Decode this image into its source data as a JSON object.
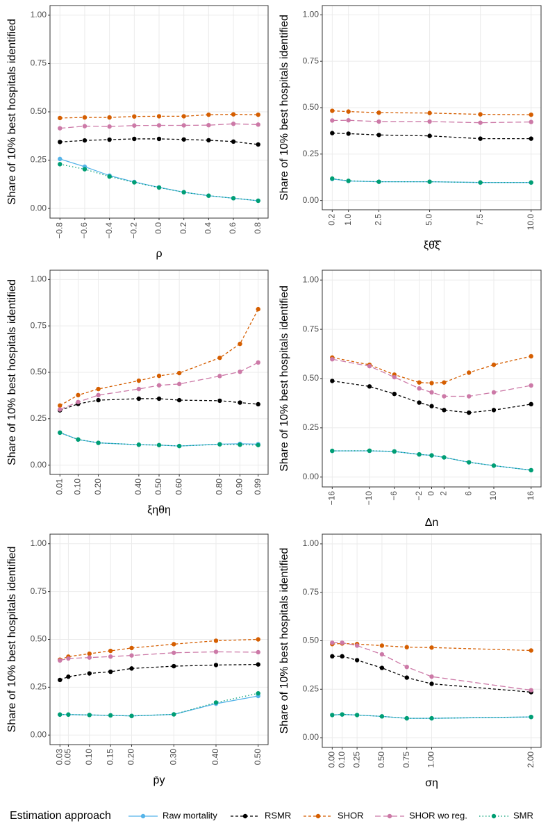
{
  "legend": {
    "title": "Estimation approach"
  },
  "chart_data": [
    {
      "type": "line",
      "xlabel": "ρ",
      "ylabel": "Share of 10% best hospitals identified",
      "x": [
        -0.8,
        -0.6,
        -0.4,
        -0.2,
        0,
        0.2,
        0.4,
        0.6,
        0.8
      ],
      "xlim": [
        -0.88,
        0.88
      ],
      "ylim": [
        -0.05,
        1.05
      ],
      "grid": true,
      "xticks": [
        {
          "value": -0.8,
          "label": "−0.8"
        },
        {
          "value": -0.6,
          "label": "−0.6"
        },
        {
          "value": -0.4,
          "label": "−0.4"
        },
        {
          "value": -0.2,
          "label": "−0.2"
        },
        {
          "value": 0,
          "label": "0.0"
        },
        0.2,
        0.4,
        0.6,
        0.8
      ],
      "yticks": [
        {
          "value": 0,
          "label": "0.00"
        },
        0.25,
        {
          "value": 0.5,
          "label": "0.50"
        },
        0.75,
        {
          "value": 1,
          "label": "1.00"
        }
      ],
      "series": [
        {
          "name": "Raw mortality",
          "color": "#56B4E9",
          "dash": "solid",
          "values": [
            0.256,
            0.216,
            0.17,
            0.137,
            0.109,
            0.084,
            0.066,
            0.053,
            0.04
          ]
        },
        {
          "name": "RSMR",
          "color": "#000000",
          "dash": "dashed",
          "values": [
            0.344,
            0.352,
            0.356,
            0.36,
            0.36,
            0.357,
            0.353,
            0.346,
            0.331
          ]
        },
        {
          "name": "SHOR",
          "color": "#D55E00",
          "dash": "dashed",
          "values": [
            0.468,
            0.471,
            0.471,
            0.476,
            0.477,
            0.477,
            0.485,
            0.487,
            0.485
          ]
        },
        {
          "name": "SHOR wo reg.",
          "color": "#CC79A7",
          "dash": "longdash",
          "values": [
            0.415,
            0.426,
            0.424,
            0.429,
            0.43,
            0.43,
            0.431,
            0.438,
            0.434
          ]
        },
        {
          "name": "SMR",
          "color": "#009E73",
          "dash": "dotted",
          "values": [
            0.229,
            0.203,
            0.165,
            0.135,
            0.108,
            0.084,
            0.066,
            0.053,
            0.04
          ]
        }
      ]
    },
    {
      "type": "line",
      "xlabel": "ξθ̂ξ̂",
      "ylabel": "Share of 10% best hospitals identified",
      "x": [
        0.2,
        1,
        2.5,
        5,
        7.5,
        10
      ],
      "xlim": [
        -0.29,
        10.49
      ],
      "ylim": [
        -0.05,
        1.05
      ],
      "grid": true,
      "xticks": [
        0.2,
        {
          "value": 1,
          "label": "1.0"
        },
        2.5,
        {
          "value": 5,
          "label": "5.0"
        },
        7.5,
        {
          "value": 10,
          "label": "10.0"
        }
      ],
      "yticks": [
        {
          "value": 0,
          "label": "0.00"
        },
        0.25,
        {
          "value": 0.5,
          "label": "0.50"
        },
        0.75,
        {
          "value": 1,
          "label": "1.00"
        }
      ],
      "series": [
        {
          "name": "Raw mortality",
          "color": "#56B4E9",
          "dash": "solid",
          "values": [
            0.116,
            0.105,
            0.101,
            0.101,
            0.097,
            0.097
          ]
        },
        {
          "name": "RSMR",
          "color": "#000000",
          "dash": "dashed",
          "values": [
            0.363,
            0.36,
            0.353,
            0.348,
            0.333,
            0.333
          ]
        },
        {
          "name": "SHOR",
          "color": "#D55E00",
          "dash": "dashed",
          "values": [
            0.483,
            0.479,
            0.473,
            0.471,
            0.464,
            0.462
          ]
        },
        {
          "name": "SHOR wo reg.",
          "color": "#CC79A7",
          "dash": "longdash",
          "values": [
            0.431,
            0.432,
            0.425,
            0.425,
            0.419,
            0.423
          ]
        },
        {
          "name": "SMR",
          "color": "#009E73",
          "dash": "dotted",
          "values": [
            0.118,
            0.106,
            0.101,
            0.101,
            0.097,
            0.097
          ]
        }
      ]
    },
    {
      "type": "line",
      "xlabel": "ξηθη",
      "ylabel": "Share of 10% best hospitals identified",
      "x": [
        0.01,
        0.1,
        0.2,
        0.4,
        0.5,
        0.6,
        0.8,
        0.9,
        0.99
      ],
      "xlim": [
        -0.039,
        1.039
      ],
      "ylim": [
        -0.05,
        1.05
      ],
      "grid": true,
      "xticks": [
        0.01,
        {
          "value": 0.1,
          "label": "0.10"
        },
        {
          "value": 0.2,
          "label": "0.20"
        },
        {
          "value": 0.4,
          "label": "0.40"
        },
        {
          "value": 0.5,
          "label": "0.50"
        },
        {
          "value": 0.6,
          "label": "0.60"
        },
        {
          "value": 0.8,
          "label": "0.80"
        },
        {
          "value": 0.9,
          "label": "0.90"
        },
        0.99
      ],
      "yticks": [
        {
          "value": 0,
          "label": "0.00"
        },
        0.25,
        {
          "value": 0.5,
          "label": "0.50"
        },
        0.75,
        {
          "value": 1,
          "label": "1.00"
        }
      ],
      "series": [
        {
          "name": "Raw mortality",
          "color": "#56B4E9",
          "dash": "solid",
          "values": [
            0.175,
            0.138,
            0.12,
            0.11,
            0.108,
            0.103,
            0.113,
            0.115,
            0.113
          ]
        },
        {
          "name": "RSMR",
          "color": "#000000",
          "dash": "dashed",
          "values": [
            0.295,
            0.33,
            0.35,
            0.358,
            0.358,
            0.35,
            0.347,
            0.337,
            0.328
          ]
        },
        {
          "name": "SHOR",
          "color": "#D55E00",
          "dash": "dashed",
          "values": [
            0.321,
            0.377,
            0.41,
            0.455,
            0.481,
            0.496,
            0.578,
            0.653,
            0.84
          ]
        },
        {
          "name": "SHOR wo reg.",
          "color": "#CC79A7",
          "dash": "longdash",
          "values": [
            0.3,
            0.34,
            0.377,
            0.41,
            0.43,
            0.437,
            0.48,
            0.503,
            0.553
          ]
        },
        {
          "name": "SMR",
          "color": "#009E73",
          "dash": "dotted",
          "values": [
            0.175,
            0.138,
            0.12,
            0.11,
            0.108,
            0.103,
            0.112,
            0.11,
            0.108
          ]
        }
      ]
    },
    {
      "type": "line",
      "xlabel": "Δn",
      "ylabel": "Share of 10% best hospitals identified",
      "x": [
        -16,
        -10,
        -6,
        -2,
        0,
        2,
        6,
        10,
        16
      ],
      "xlim": [
        -17.6,
        17.6
      ],
      "ylim": [
        -0.05,
        1.05
      ],
      "grid": true,
      "xticks": [
        {
          "value": -16,
          "label": "−16"
        },
        {
          "value": -10,
          "label": "−10"
        },
        {
          "value": -6,
          "label": "−6"
        },
        {
          "value": -2,
          "label": "−2"
        },
        0,
        2,
        6,
        10,
        16
      ],
      "yticks": [
        {
          "value": 0,
          "label": "0.00"
        },
        0.25,
        {
          "value": 0.5,
          "label": "0.50"
        },
        0.75,
        {
          "value": 1,
          "label": "1.00"
        }
      ],
      "series": [
        {
          "name": "Raw mortality",
          "color": "#56B4E9",
          "dash": "solid",
          "values": [
            0.133,
            0.133,
            0.13,
            0.115,
            0.11,
            0.1,
            0.075,
            0.058,
            0.035
          ]
        },
        {
          "name": "RSMR",
          "color": "#000000",
          "dash": "dashed",
          "values": [
            0.488,
            0.46,
            0.422,
            0.378,
            0.36,
            0.34,
            0.327,
            0.34,
            0.37
          ]
        },
        {
          "name": "SHOR",
          "color": "#D55E00",
          "dash": "dashed",
          "values": [
            0.607,
            0.57,
            0.52,
            0.48,
            0.477,
            0.48,
            0.53,
            0.57,
            0.613
          ]
        },
        {
          "name": "SHOR wo reg.",
          "color": "#CC79A7",
          "dash": "longdash",
          "values": [
            0.598,
            0.563,
            0.507,
            0.45,
            0.43,
            0.41,
            0.41,
            0.43,
            0.465
          ]
        },
        {
          "name": "SMR",
          "color": "#009E73",
          "dash": "dotted",
          "values": [
            0.133,
            0.134,
            0.13,
            0.115,
            0.11,
            0.1,
            0.075,
            0.058,
            0.035
          ]
        }
      ]
    },
    {
      "type": "line",
      "xlabel": "p̄y",
      "ylabel": "Share of 10% best hospitals identified",
      "x": [
        0.03,
        0.05,
        0.1,
        0.15,
        0.2,
        0.3,
        0.4,
        0.5
      ],
      "xlim": [
        0.0065,
        0.5235
      ],
      "ylim": [
        -0.05,
        1.05
      ],
      "grid": true,
      "xticks": [
        0.03,
        0.05,
        {
          "value": 0.1,
          "label": "0.10"
        },
        0.15,
        {
          "value": 0.2,
          "label": "0.20"
        },
        {
          "value": 0.3,
          "label": "0.30"
        },
        {
          "value": 0.4,
          "label": "0.40"
        },
        {
          "value": 0.5,
          "label": "0.50"
        }
      ],
      "yticks": [
        {
          "value": 0,
          "label": "0.00"
        },
        0.25,
        {
          "value": 0.5,
          "label": "0.50"
        },
        0.75,
        {
          "value": 1,
          "label": "1.00"
        }
      ],
      "series": [
        {
          "name": "Raw mortality",
          "color": "#56B4E9",
          "dash": "solid",
          "values": [
            0.107,
            0.107,
            0.105,
            0.103,
            0.1,
            0.108,
            0.164,
            0.204
          ]
        },
        {
          "name": "RSMR",
          "color": "#000000",
          "dash": "dashed",
          "values": [
            0.288,
            0.305,
            0.322,
            0.331,
            0.348,
            0.36,
            0.366,
            0.369
          ]
        },
        {
          "name": "SHOR",
          "color": "#D55E00",
          "dash": "dashed",
          "values": [
            0.394,
            0.41,
            0.425,
            0.44,
            0.455,
            0.475,
            0.493,
            0.5
          ]
        },
        {
          "name": "SHOR wo reg.",
          "color": "#CC79A7",
          "dash": "longdash",
          "values": [
            0.39,
            0.4,
            0.405,
            0.41,
            0.416,
            0.43,
            0.435,
            0.433
          ]
        },
        {
          "name": "SMR",
          "color": "#009E73",
          "dash": "dotted",
          "values": [
            0.107,
            0.107,
            0.105,
            0.103,
            0.1,
            0.108,
            0.17,
            0.218
          ]
        }
      ]
    },
    {
      "type": "line",
      "xlabel": "ση",
      "ylabel": "Share of 10% best hospitals identified",
      "x": [
        0,
        0.1,
        0.25,
        0.5,
        0.75,
        1,
        2
      ],
      "xlim": [
        -0.1,
        2.1
      ],
      "ylim": [
        -0.05,
        1.05
      ],
      "grid": true,
      "xticks": [
        {
          "value": 0,
          "label": "0.00"
        },
        {
          "value": 0.1,
          "label": "0.10"
        },
        0.25,
        {
          "value": 0.5,
          "label": "0.50"
        },
        0.75,
        {
          "value": 1,
          "label": "1.00"
        },
        {
          "value": 2,
          "label": "2.00"
        }
      ],
      "yticks": [
        {
          "value": 0,
          "label": "0.00"
        },
        0.25,
        {
          "value": 0.5,
          "label": "0.50"
        },
        0.75,
        {
          "value": 1,
          "label": "1.00"
        }
      ],
      "series": [
        {
          "name": "Raw mortality",
          "color": "#56B4E9",
          "dash": "solid",
          "values": [
            0.117,
            0.12,
            0.117,
            0.11,
            0.1,
            0.1,
            0.107
          ]
        },
        {
          "name": "RSMR",
          "color": "#000000",
          "dash": "dashed",
          "values": [
            0.42,
            0.42,
            0.4,
            0.36,
            0.31,
            0.278,
            0.235
          ]
        },
        {
          "name": "SHOR",
          "color": "#D55E00",
          "dash": "dashed",
          "values": [
            0.483,
            0.486,
            0.483,
            0.475,
            0.467,
            0.465,
            0.45
          ]
        },
        {
          "name": "SHOR wo reg.",
          "color": "#CC79A7",
          "dash": "longdash",
          "values": [
            0.49,
            0.49,
            0.475,
            0.43,
            0.365,
            0.315,
            0.245
          ]
        },
        {
          "name": "SMR",
          "color": "#009E73",
          "dash": "dotted",
          "values": [
            0.117,
            0.12,
            0.117,
            0.11,
            0.1,
            0.1,
            0.107
          ]
        }
      ]
    }
  ]
}
